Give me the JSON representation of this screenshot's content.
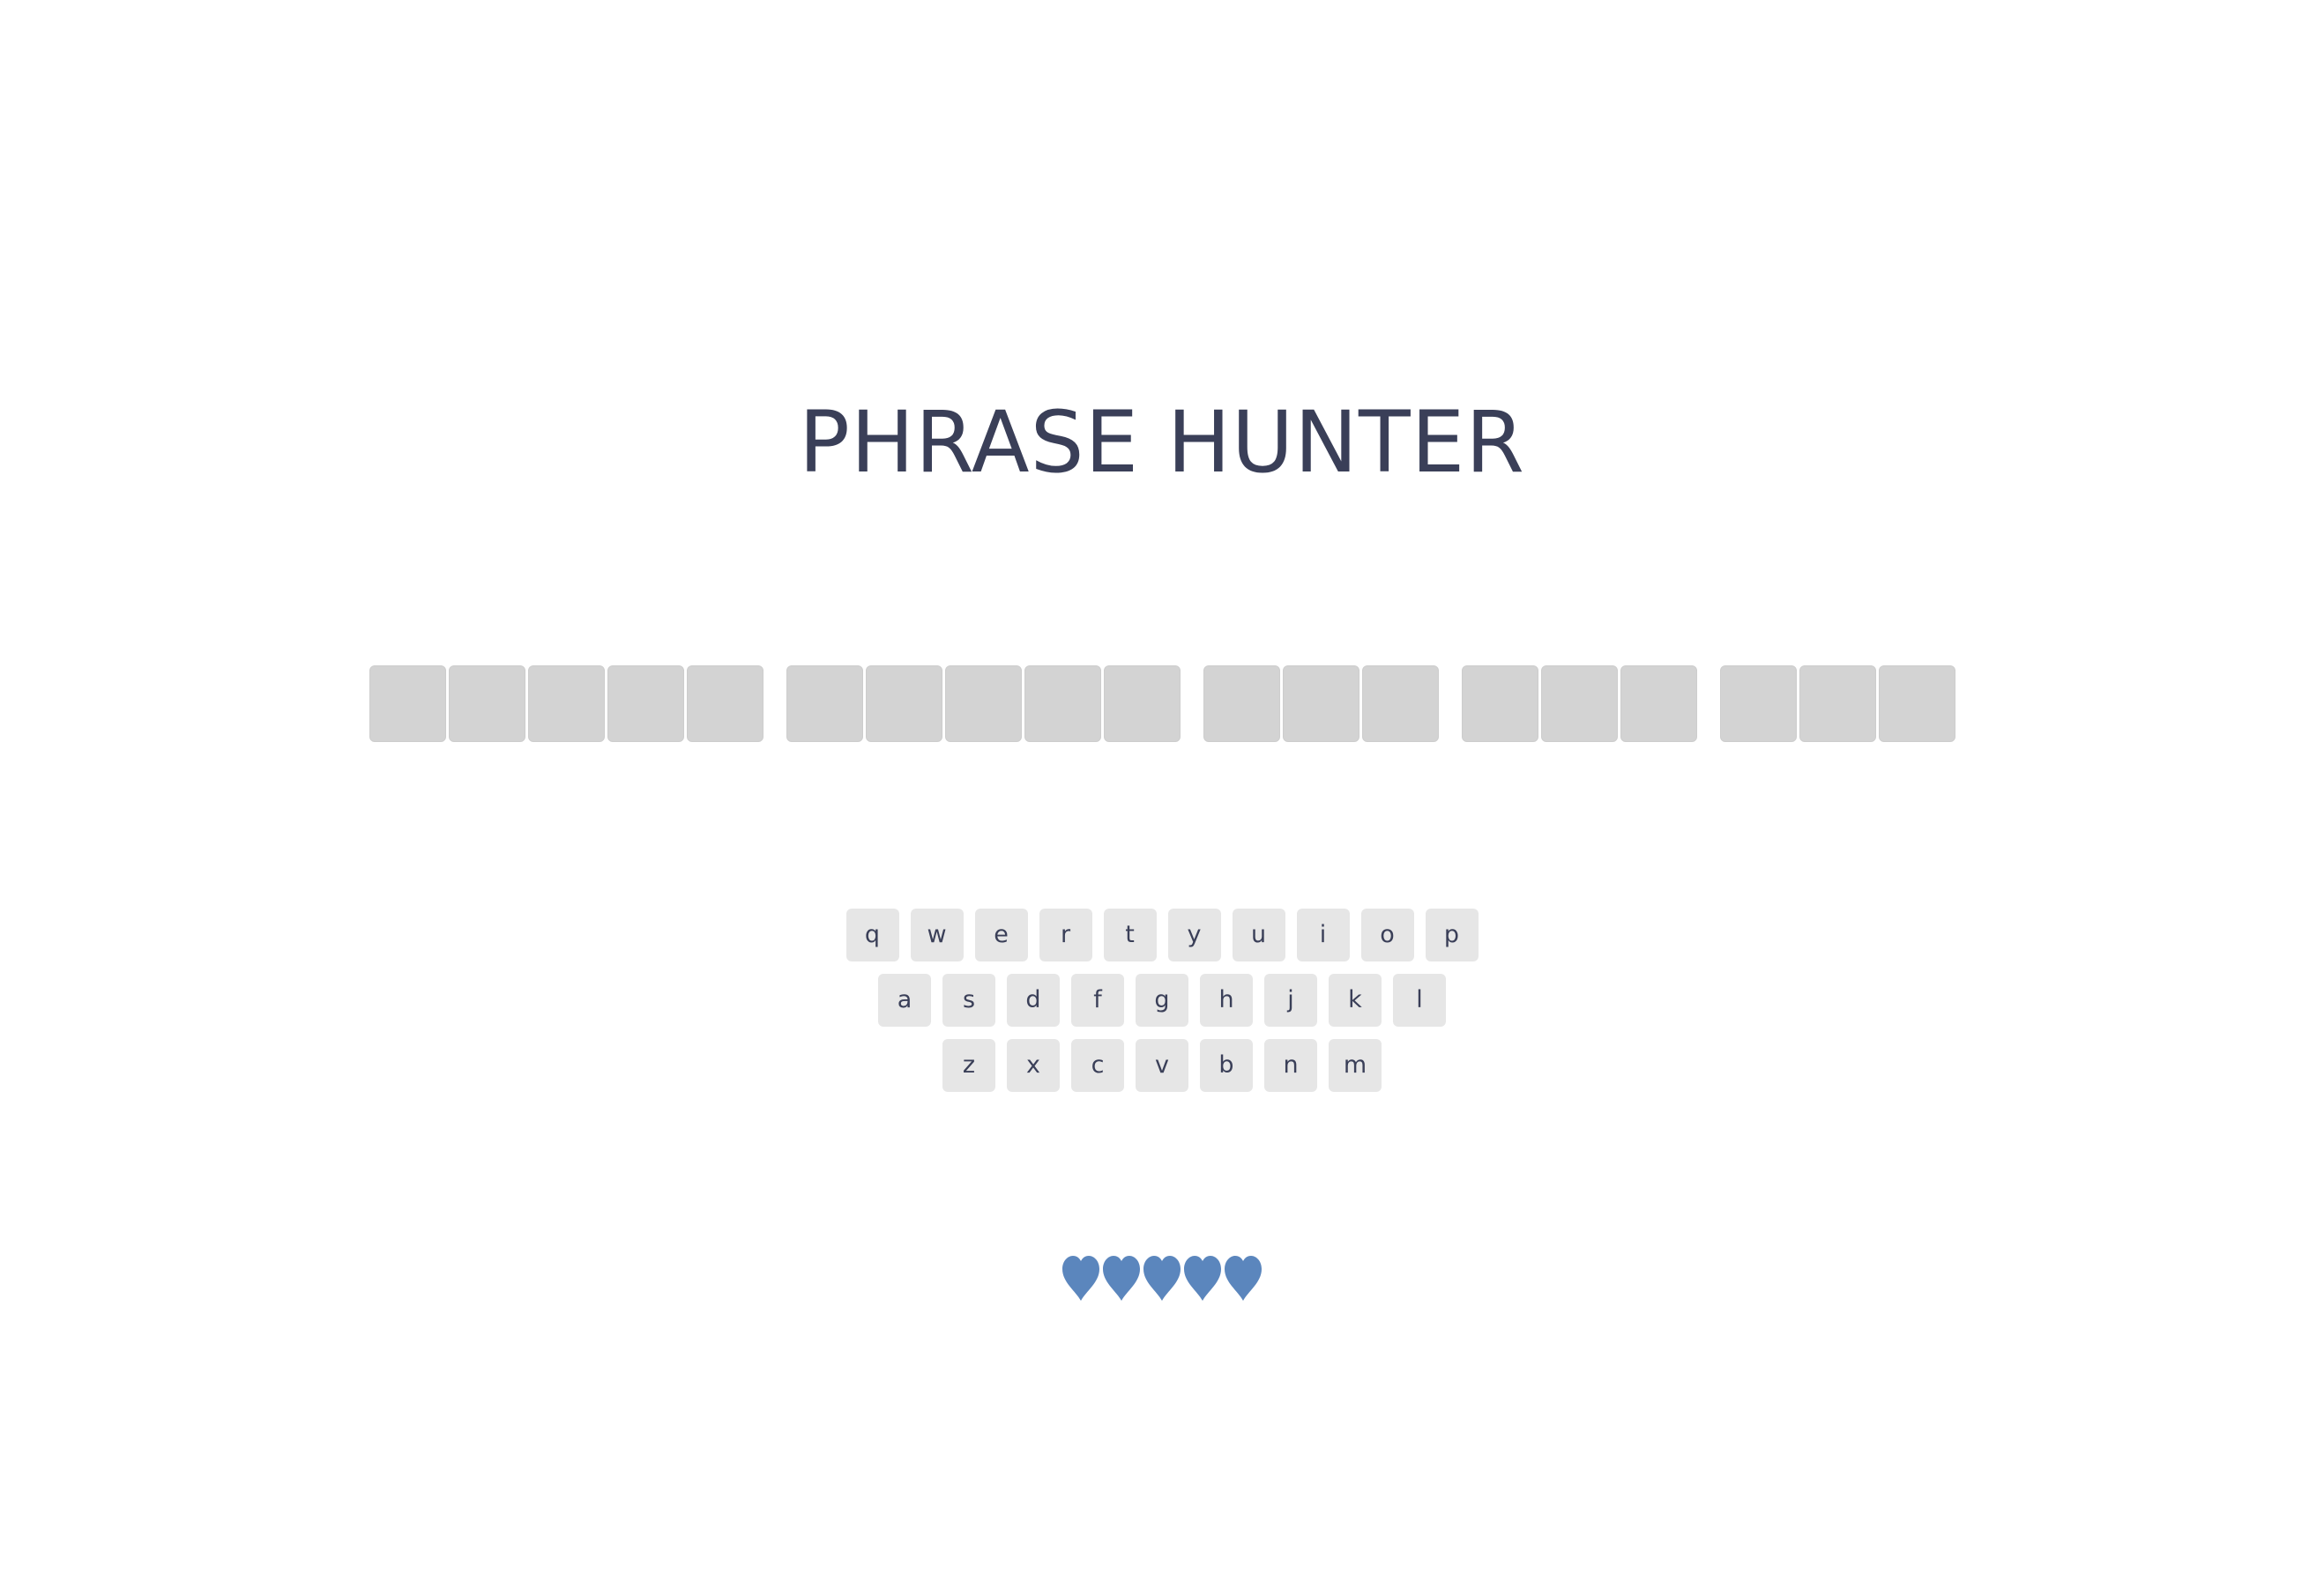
{
  "header": {
    "title": "PHRASE HUNTER"
  },
  "phrase": {
    "word_lengths": [
      5,
      5,
      3,
      3,
      3
    ],
    "tile_color": "#d3d3d3"
  },
  "keyboard": {
    "rows": [
      [
        "q",
        "w",
        "e",
        "r",
        "t",
        "y",
        "u",
        "i",
        "o",
        "p"
      ],
      [
        "a",
        "s",
        "d",
        "f",
        "g",
        "h",
        "j",
        "k",
        "l"
      ],
      [
        "z",
        "x",
        "c",
        "v",
        "b",
        "n",
        "m"
      ]
    ],
    "key_color": "#e6e6e6",
    "text_color": "#3a3f58"
  },
  "scoreboard": {
    "lives": 5,
    "icon": "heart-icon",
    "heart_color": "#5b86bd"
  }
}
